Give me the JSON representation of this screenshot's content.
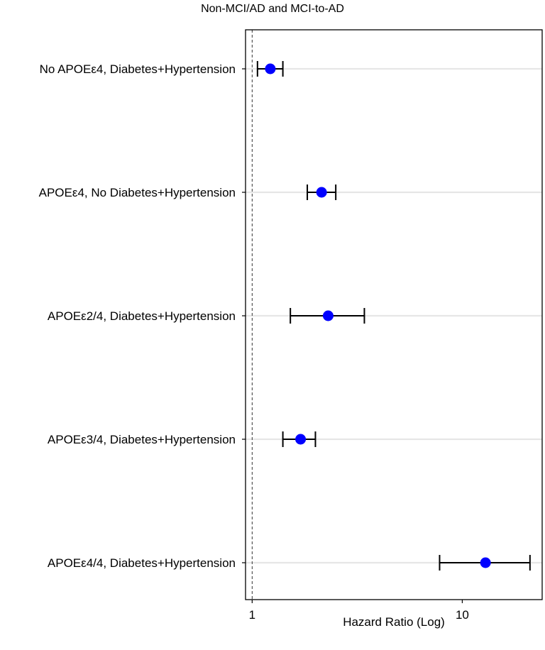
{
  "chart_data": {
    "type": "forest",
    "title": "Non-MCI/AD and MCI-to-AD",
    "xlabel": "Hazard Ratio (Log)",
    "ylabel": "",
    "x_scale": "log",
    "xlim": [
      0.93,
      24
    ],
    "xticks": [
      {
        "value": 1,
        "label": "1"
      },
      {
        "value": 10,
        "label": "10"
      }
    ],
    "reference_line": 1,
    "grid": "horizontal",
    "marker_color": "#0000ff",
    "rows": [
      {
        "label": "No APOEε4, Diabetes+Hypertension",
        "hr": 1.22,
        "lower": 1.06,
        "upper": 1.4
      },
      {
        "label": "APOEε4, No Diabetes+Hypertension",
        "hr": 2.14,
        "lower": 1.83,
        "upper": 2.5
      },
      {
        "label": "APOEε2/4, Diabetes+Hypertension",
        "hr": 2.3,
        "lower": 1.52,
        "upper": 3.42
      },
      {
        "label": "APOEε3/4, Diabetes+Hypertension",
        "hr": 1.7,
        "lower": 1.4,
        "upper": 2.0
      },
      {
        "label": "APOEε4/4, Diabetes+Hypertension",
        "hr": 12.9,
        "lower": 7.8,
        "upper": 21.0
      }
    ]
  }
}
